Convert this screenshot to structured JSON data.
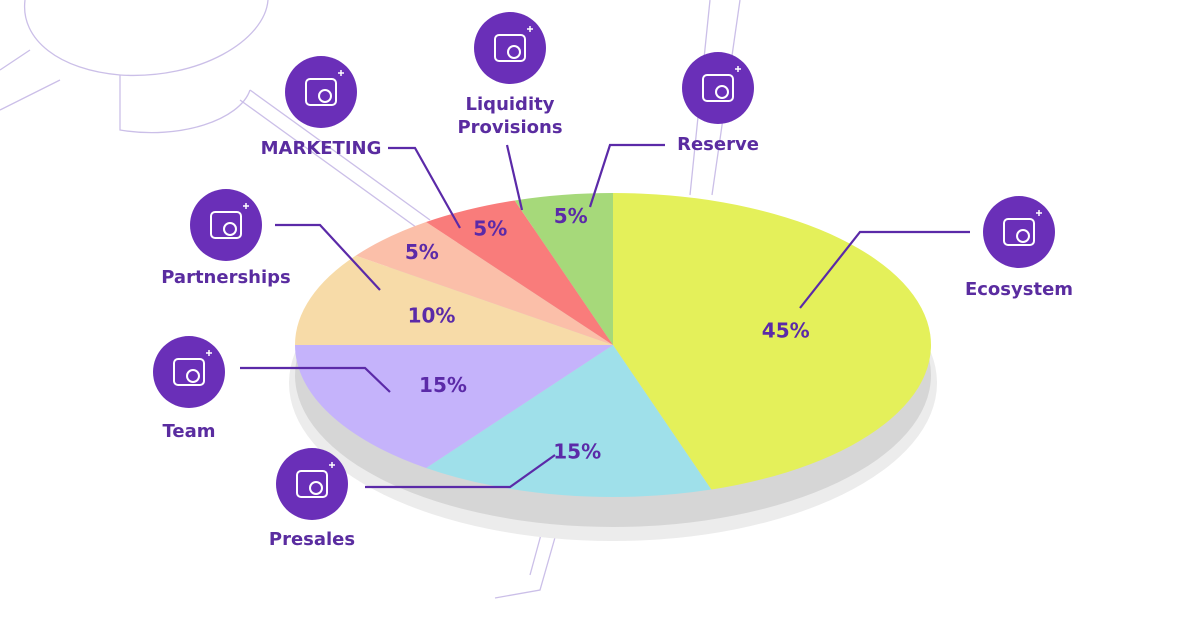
{
  "chart_data": {
    "type": "pie",
    "categories": [
      "Ecosystem",
      "Presales",
      "Team",
      "Partnerships",
      "MARKETING",
      "Liquidity Provisions",
      "Reserve"
    ],
    "values": [
      45,
      15,
      15,
      10,
      5,
      5,
      5
    ],
    "value_labels": [
      "45%",
      "15%",
      "15%",
      "10%",
      "5%",
      "5%",
      "5%"
    ],
    "colors": [
      "#e4f05a",
      "#9fe0ea",
      "#c5b3fb",
      "#f7dba8",
      "#fbbfa9",
      "#f97c7b",
      "#a6d97a"
    ]
  }
}
